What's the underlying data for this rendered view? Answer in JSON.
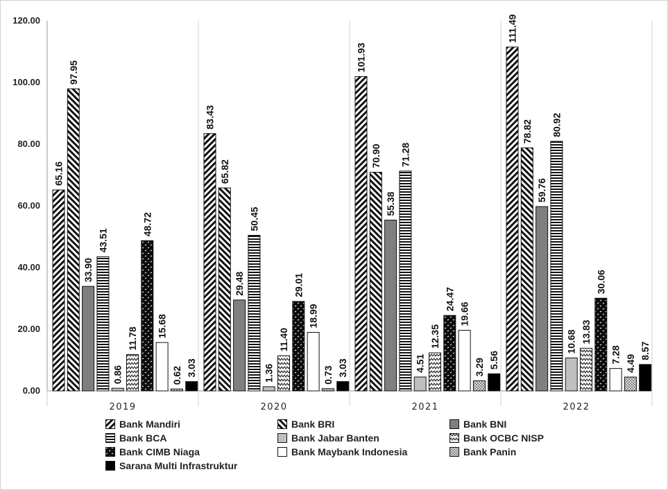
{
  "chart_data": {
    "type": "bar",
    "categories": [
      "2019",
      "2020",
      "2021",
      "2022"
    ],
    "ylim": [
      0,
      120
    ],
    "yticks": [
      "0.00",
      "20.00",
      "40.00",
      "60.00",
      "80.00",
      "100.00",
      "120.00"
    ],
    "grid": false,
    "legend_position": "bottom",
    "series": [
      {
        "name": "Bank Mandiri",
        "values": [
          65.16,
          83.43,
          101.93,
          111.49
        ],
        "labels": [
          "65.16",
          "83.43",
          "101.93",
          "111.49"
        ],
        "pattern": "diag-fwd"
      },
      {
        "name": "Bank BRI",
        "values": [
          97.95,
          65.82,
          70.9,
          78.82
        ],
        "labels": [
          "97.95",
          "65.82",
          "70.90",
          "78.82"
        ],
        "pattern": "diag-back"
      },
      {
        "name": "Bank BNI",
        "values": [
          33.9,
          29.48,
          55.38,
          59.76
        ],
        "labels": [
          "33.90",
          "29.48",
          "55.38",
          "59.76"
        ],
        "pattern": "solid-gray"
      },
      {
        "name": "Bank BCA",
        "values": [
          43.51,
          50.45,
          71.28,
          80.92
        ],
        "labels": [
          "43.51",
          "50.45",
          "71.28",
          "80.92"
        ],
        "pattern": "horizontal"
      },
      {
        "name": "Bank Jabar Banten",
        "values": [
          0.86,
          1.36,
          4.51,
          10.68
        ],
        "labels": [
          "0.86",
          "1.36",
          "4.51",
          "10.68"
        ],
        "pattern": "solid-lightgray"
      },
      {
        "name": "Bank OCBC NISP",
        "values": [
          11.78,
          11.4,
          12.35,
          13.83
        ],
        "labels": [
          "11.78",
          "11.40",
          "12.35",
          "13.83"
        ],
        "pattern": "zigzag"
      },
      {
        "name": "Bank CIMB Niaga",
        "values": [
          48.72,
          29.01,
          24.47,
          30.06
        ],
        "labels": [
          "48.72",
          "29.01",
          "24.47",
          "30.06"
        ],
        "pattern": "black-dots"
      },
      {
        "name": "Bank Maybank Indonesia",
        "values": [
          15.68,
          18.99,
          19.66,
          7.28
        ],
        "labels": [
          "15.68",
          "18.99",
          "19.66",
          "7.28"
        ],
        "pattern": "white"
      },
      {
        "name": "Bank Panin",
        "values": [
          0.62,
          0.73,
          3.29,
          4.49
        ],
        "labels": [
          "0.62",
          "0.73",
          "3.29",
          "4.49"
        ],
        "pattern": "dotted"
      },
      {
        "name": "Sarana Multi Infrastruktur",
        "values": [
          3.03,
          3.03,
          5.56,
          8.57
        ],
        "labels": [
          "3.03",
          "3.03",
          "5.56",
          "8.57"
        ],
        "pattern": "solid-black"
      }
    ]
  }
}
